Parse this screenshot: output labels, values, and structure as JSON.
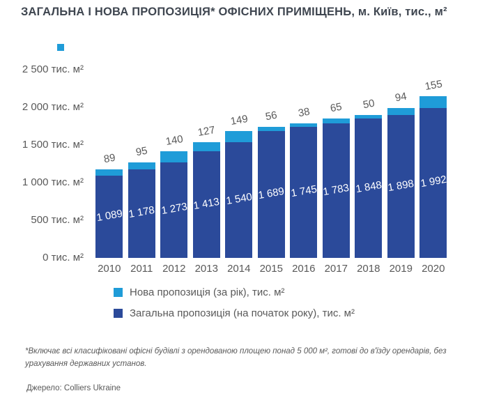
{
  "title": "ЗАГАЛЬНА І НОВА ПРОПОЗИЦІЯ* ОФІСНИХ ПРИМІЩЕНЬ, м. Київ, тис., м²",
  "accent_color": "#1f9cd8",
  "chart_data": {
    "type": "bar",
    "stacked": true,
    "title": "ЗАГАЛЬНА І НОВА ПРОПОЗИЦІЯ* ОФІСНИХ ПРИМІЩЕНЬ, м. Київ, тис., м²",
    "categories": [
      "2010",
      "2011",
      "2012",
      "2013",
      "2014",
      "2015",
      "2016",
      "2017",
      "2018",
      "2019",
      "2020"
    ],
    "series": [
      {
        "name": "Загальна пропозиція (на початок року), тис. м²",
        "color": "#2b4a9a",
        "label_color": "#ffffff",
        "values": [
          1089,
          1178,
          1273,
          1413,
          1540,
          1689,
          1745,
          1783,
          1848,
          1898,
          1992
        ]
      },
      {
        "name": "Нова пропозиція (за рік), тис. м²",
        "color": "#1f9cd8",
        "label_color": "#595959",
        "values": [
          89,
          95,
          140,
          127,
          149,
          56,
          38,
          65,
          50,
          94,
          155
        ]
      }
    ],
    "y_ticks": [
      {
        "value": 0,
        "label": "0 тис. м²"
      },
      {
        "value": 500,
        "label": "500 тис. м²"
      },
      {
        "value": 1000,
        "label": "1 000 тис. м²"
      },
      {
        "value": 1500,
        "label": "1 500 тис. м²"
      },
      {
        "value": 2000,
        "label": "2 000 тис. м²"
      },
      {
        "value": 2500,
        "label": "2 500 тис. м²"
      }
    ],
    "ylim": [
      0,
      2500
    ],
    "grid": false,
    "legend_position": "bottom-left"
  },
  "legend": {
    "items": [
      {
        "label": "Нова пропозиція (за рік), тис. м²",
        "color": "#1f9cd8"
      },
      {
        "label": "Загальна пропозиція (на початок року), тис. м²",
        "color": "#2b4a9a"
      }
    ]
  },
  "footnote": "*Включає всі класифіковані офісні будівлі з орендованою площею понад 5 000 м², готові до в'їзду орендарів, без урахування державних установ.",
  "source": "Джерело: Colliers Ukraine"
}
